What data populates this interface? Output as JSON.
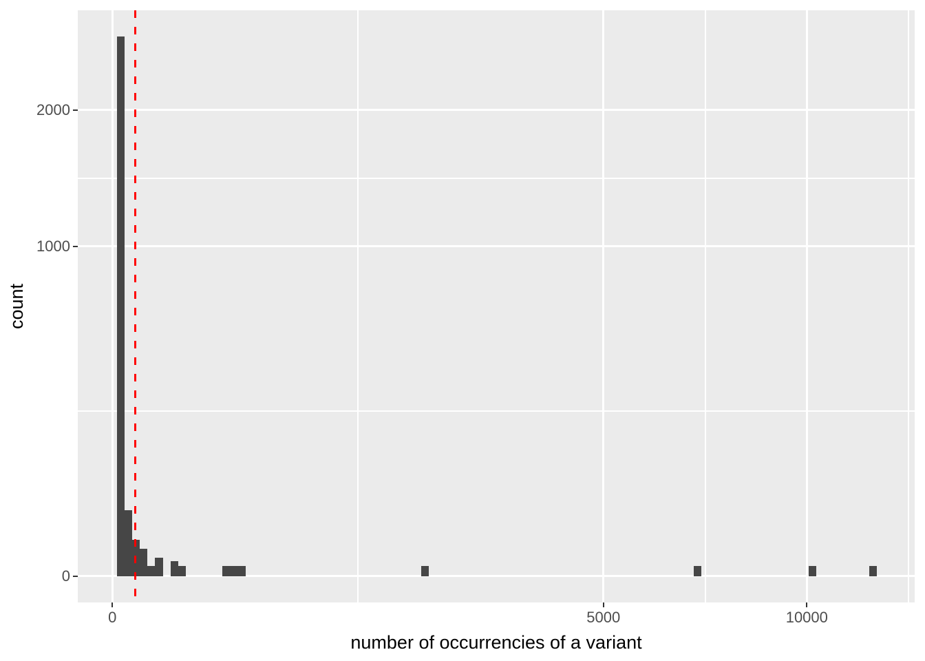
{
  "chart_data": {
    "type": "bar",
    "subtype": "histogram",
    "title": "",
    "xlabel": "number of occurrencies of a variant",
    "ylabel": "count",
    "x_scale": "sqrt",
    "y_scale": "sqrt",
    "grid": "on",
    "legend": "none",
    "x_ticks": [
      {
        "value": 0,
        "label": "0"
      },
      {
        "value": 5000,
        "label": "5000"
      },
      {
        "value": 10000,
        "label": "10000"
      }
    ],
    "y_ticks": [
      {
        "value": 0,
        "label": "0"
      },
      {
        "value": 1000,
        "label": "1000"
      },
      {
        "value": 2000,
        "label": "2000"
      }
    ],
    "x_minor_gridlines": [
      1250,
      7286,
      13138
    ],
    "y_minor_gridlines": [
      250,
      1457
    ],
    "x_range_approx": [
      0,
      13300
    ],
    "y_range_approx": [
      0,
      2950
    ],
    "bins": [
      {
        "x0": 0.4,
        "x1": 3.1,
        "count": 2680
      },
      {
        "x0": 3.1,
        "x1": 8.2,
        "count": 40
      },
      {
        "x0": 8.2,
        "x1": 15.7,
        "count": 12
      },
      {
        "x0": 15.7,
        "x1": 25.6,
        "count": 7
      },
      {
        "x0": 25.6,
        "x1": 38.0,
        "count": 1
      },
      {
        "x0": 38.0,
        "x1": 52.7,
        "count": 3
      },
      {
        "x0": 70.0,
        "x1": 89.5,
        "count": 2
      },
      {
        "x0": 89.5,
        "x1": 111.5,
        "count": 1
      },
      {
        "x0": 251.5,
        "x1": 287.6,
        "count": 1
      },
      {
        "x0": 287.6,
        "x1": 326.2,
        "count": 1
      },
      {
        "x0": 326.2,
        "x1": 367.1,
        "count": 1
      },
      {
        "x0": 1977,
        "x1": 2077,
        "count": 1
      },
      {
        "x0": 7009,
        "x1": 7194,
        "count": 1
      },
      {
        "x0": 10060,
        "x1": 10282,
        "count": 1
      },
      {
        "x0": 11881,
        "x1": 12122,
        "count": 1
      }
    ],
    "vline": {
      "value": 10.8,
      "style": "dashed",
      "color": "#FF0000"
    }
  },
  "style": {
    "background": "#FFFFFF",
    "panel_background": "#EBEBEB",
    "gridline_color": "#FFFFFF",
    "bar_fill": "#464646",
    "vline_color": "#FF0000",
    "tick_label_color": "#4D4D4D",
    "axis_title_color": "#000000",
    "tick_mark_color": "#333333"
  }
}
